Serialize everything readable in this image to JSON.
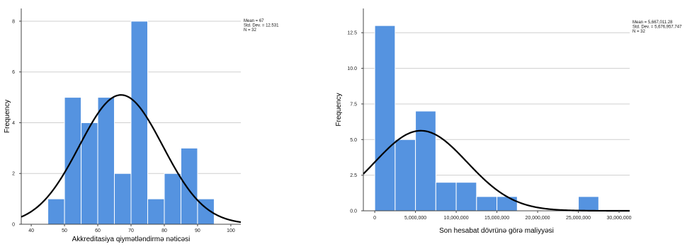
{
  "chart_data": [
    {
      "type": "bar",
      "subtype": "histogram",
      "xlabel": "Akkreditasiya qiymətləndirmə nəticəsi",
      "ylabel": "Frequency",
      "bin_width": 5,
      "bins": [
        {
          "x0": 45,
          "x1": 50,
          "count": 1
        },
        {
          "x0": 50,
          "x1": 55,
          "count": 5
        },
        {
          "x0": 55,
          "x1": 60,
          "count": 4
        },
        {
          "x0": 60,
          "x1": 65,
          "count": 5
        },
        {
          "x0": 65,
          "x1": 70,
          "count": 2
        },
        {
          "x0": 70,
          "x1": 75,
          "count": 8
        },
        {
          "x0": 75,
          "x1": 80,
          "count": 1
        },
        {
          "x0": 80,
          "x1": 85,
          "count": 2
        },
        {
          "x0": 85,
          "x1": 90,
          "count": 3
        },
        {
          "x0": 90,
          "x1": 95,
          "count": 1
        }
      ],
      "xlim": [
        37,
        103
      ],
      "ylim": [
        0,
        8.5
      ],
      "x_ticks": [
        40,
        50,
        60,
        70,
        80,
        90,
        100
      ],
      "x_tick_labels": [
        "40",
        "50",
        "60",
        "70",
        "80",
        "90",
        "100"
      ],
      "y_ticks": [
        0,
        2,
        4,
        6,
        8
      ],
      "y_tick_labels": [
        "0",
        "2",
        "4",
        "6",
        "8"
      ],
      "grid": true,
      "normal_curve": {
        "mean": 67,
        "std": 12.531,
        "n": 32
      },
      "stats_lines": [
        "Mean = 67",
        "Std. Dev. = 12.531",
        "N = 32"
      ],
      "bar_color": "#5593e0",
      "bar_edge_color": "#ffffff",
      "curve_color": "#000000",
      "grid_color": "#cfcfcf"
    },
    {
      "type": "bar",
      "subtype": "histogram",
      "xlabel": "Son hesabat dövrünə görə maliyyəsi",
      "ylabel": "Frequency",
      "bin_width": 2500000,
      "bins": [
        {
          "x0": 0,
          "x1": 2500000,
          "count": 13
        },
        {
          "x0": 2500000,
          "x1": 5000000,
          "count": 5
        },
        {
          "x0": 5000000,
          "x1": 7500000,
          "count": 7
        },
        {
          "x0": 7500000,
          "x1": 10000000,
          "count": 2
        },
        {
          "x0": 10000000,
          "x1": 12500000,
          "count": 2
        },
        {
          "x0": 12500000,
          "x1": 15000000,
          "count": 1
        },
        {
          "x0": 15000000,
          "x1": 17500000,
          "count": 1
        },
        {
          "x0": 25000000,
          "x1": 27500000,
          "count": 1
        }
      ],
      "xlim": [
        -1400000,
        31300000
      ],
      "ylim": [
        0,
        14.2
      ],
      "x_ticks": [
        0,
        5000000,
        10000000,
        15000000,
        20000000,
        25000000,
        30000000
      ],
      "x_tick_labels": [
        "0",
        "5,000,000",
        "10,000,000",
        "15,000,000",
        "20,000,000",
        "25,000,000",
        "30,000,000"
      ],
      "y_ticks": [
        0,
        2.5,
        5,
        7.5,
        10,
        12.5
      ],
      "y_tick_labels": [
        "0.0",
        "2.5",
        "5.0",
        "7.5",
        "10.0",
        "12.5"
      ],
      "grid": true,
      "normal_curve": {
        "mean": 5667011.28,
        "std": 5676957.747,
        "n": 32
      },
      "stats_lines": [
        "Mean = 5,667,011.28",
        "Std. Dev. = 5,676,957.747",
        "N = 32"
      ],
      "bar_color": "#5593e0",
      "bar_edge_color": "#ffffff",
      "curve_color": "#000000",
      "grid_color": "#cfcfcf"
    }
  ]
}
